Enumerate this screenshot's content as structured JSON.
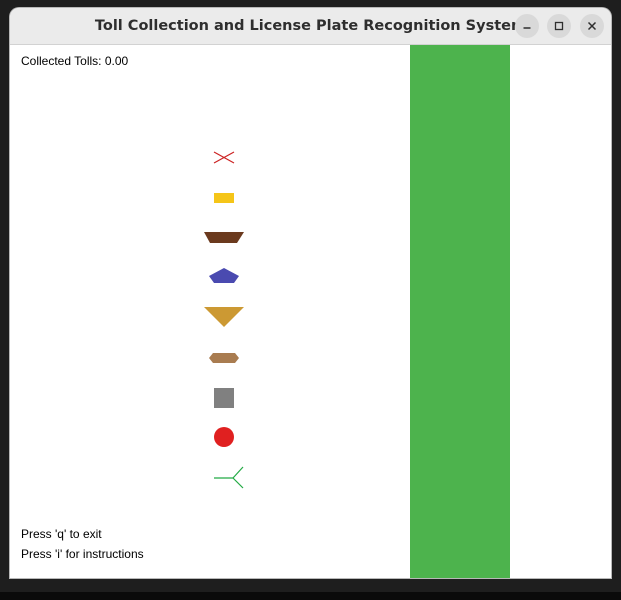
{
  "window": {
    "title": "Toll Collection and License Plate Recognition System",
    "controls": [
      "minimize-icon",
      "maximize-icon",
      "close-icon"
    ]
  },
  "hud": {
    "collected_tolls": "Collected Tolls: 0.00",
    "help_exit": "Press 'q' to exit",
    "help_instructions": "Press 'i' for instructions"
  },
  "colors": {
    "lane": "#4db34d",
    "cross": "#cc2222",
    "yellow_rect": "#f5c518",
    "brown_trapezoid": "#6b3a1e",
    "blue_pentagon": "#4a4ab0",
    "orange_triangle": "#cc9933",
    "tan_hexagon": "#a97c50",
    "gray_square": "#808080",
    "red_circle": "#e02020",
    "green_fork": "#22aa44"
  },
  "shapes": [
    {
      "name": "red-cross-icon"
    },
    {
      "name": "yellow-rectangle-icon"
    },
    {
      "name": "brown-trapezoid-icon"
    },
    {
      "name": "blue-pentagon-icon"
    },
    {
      "name": "orange-triangle-icon"
    },
    {
      "name": "tan-hexagon-icon"
    },
    {
      "name": "gray-square-icon"
    },
    {
      "name": "red-circle-icon"
    },
    {
      "name": "green-fork-icon"
    }
  ]
}
